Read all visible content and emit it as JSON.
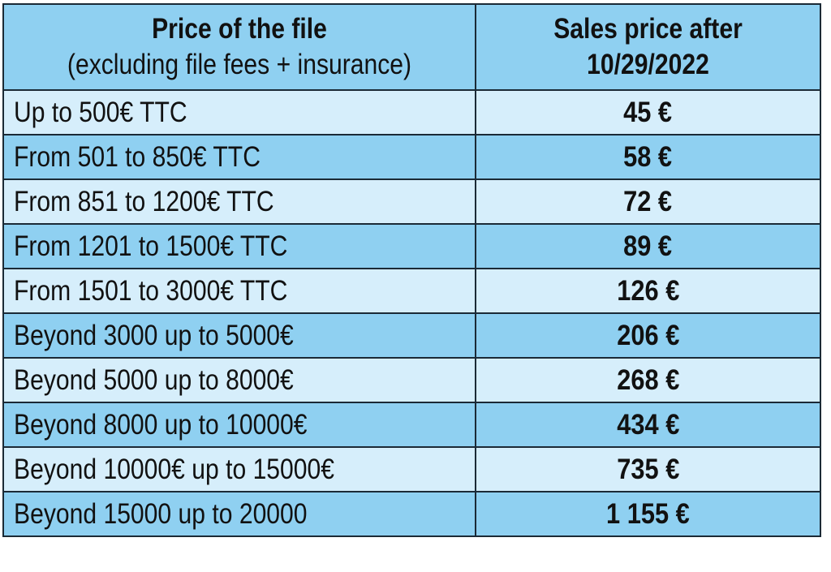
{
  "table": {
    "header": {
      "col1_line1": "Price of the file",
      "col1_line2": "(excluding file fees + insurance)",
      "col2_line1": "Sales price after",
      "col2_line2": "10/29/2022"
    },
    "rows": [
      {
        "range": "Up to 500€ TTC",
        "price": "45 €"
      },
      {
        "range": "From 501 to 850€ TTC",
        "price": "58 €"
      },
      {
        "range": "From 851 to 1200€ TTC",
        "price": "72 €"
      },
      {
        "range": "From 1201 to 1500€ TTC",
        "price": "89 €"
      },
      {
        "range": "From 1501 to 3000€ TTC",
        "price": "126 €"
      },
      {
        "range": "Beyond 3000 up to 5000€",
        "price": "206 €"
      },
      {
        "range": "Beyond 5000 up to 8000€",
        "price": "268 €"
      },
      {
        "range": "Beyond 8000 up to 10000€",
        "price": "434 €"
      },
      {
        "range": "Beyond 10000€ up to 15000€",
        "price": "735 €"
      },
      {
        "range": "Beyond 15000 up to 20000",
        "price": "1 155 €"
      }
    ],
    "colors": {
      "light_row": "#d6eefb",
      "dark_row": "#8fd0f1",
      "border": "#1b2a36"
    }
  }
}
